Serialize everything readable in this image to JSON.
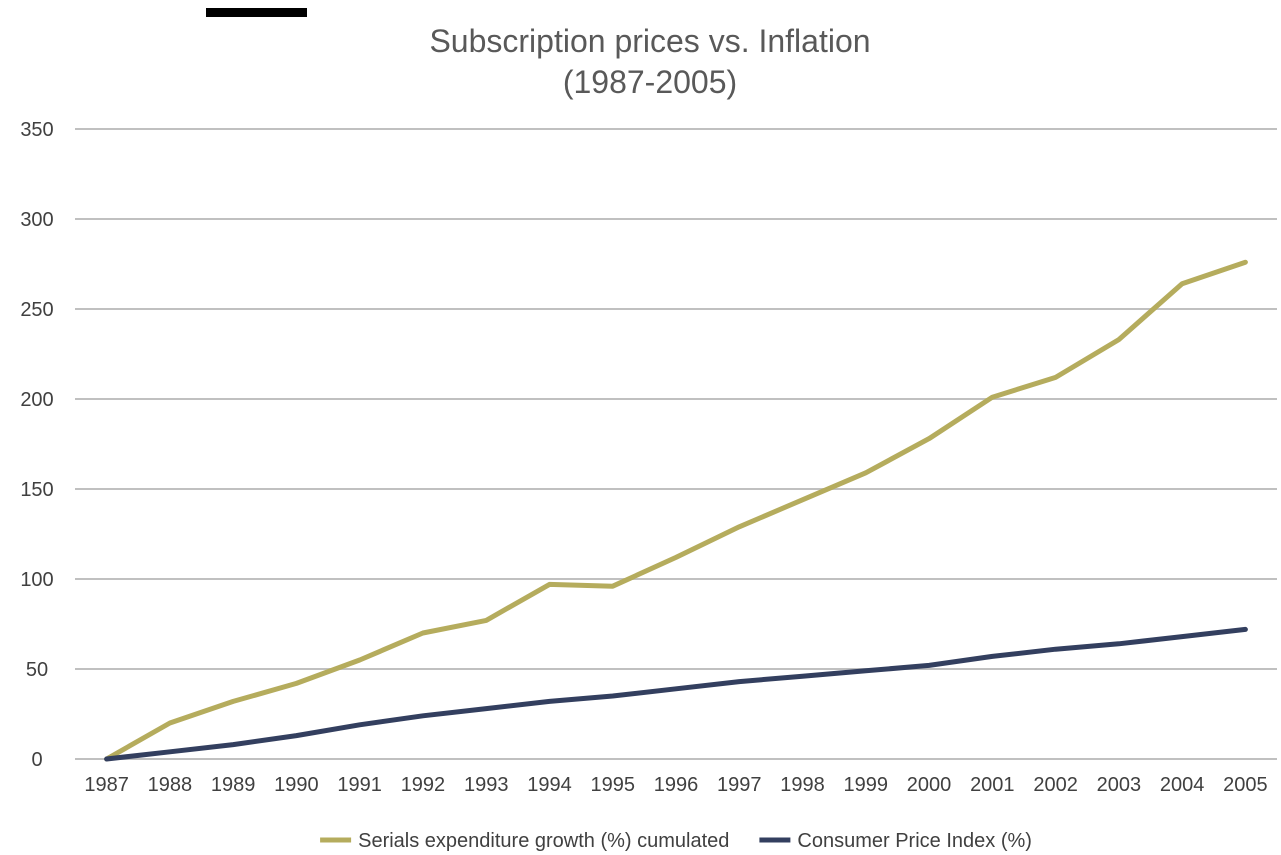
{
  "chart_data": {
    "type": "line",
    "title_lines": [
      "Subscription prices vs. Inflation",
      "(1987-2005)"
    ],
    "xlabel": "",
    "ylabel": "",
    "x": [
      "1987",
      "1988",
      "1989",
      "1990",
      "1991",
      "1992",
      "1993",
      "1994",
      "1995",
      "1996",
      "1997",
      "1998",
      "1999",
      "2000",
      "2001",
      "2002",
      "2003",
      "2004",
      "2005"
    ],
    "yticks": [
      "0",
      "50",
      "100",
      "150",
      "200",
      "250",
      "300",
      "350"
    ],
    "ylim": [
      0,
      350
    ],
    "grid": true,
    "legend_position": "bottom",
    "series": [
      {
        "name": "Serials expenditure growth (%) cumulated",
        "color": "#b5ac5d",
        "values": [
          0,
          20,
          32,
          42,
          55,
          70,
          77,
          97,
          96,
          112,
          129,
          144,
          159,
          178,
          201,
          212,
          233,
          264,
          276
        ]
      },
      {
        "name": "Consumer Price Index (%)",
        "color": "#333f5f",
        "values": [
          0,
          4,
          8,
          13,
          19,
          24,
          28,
          32,
          35,
          39,
          43,
          46,
          49,
          52,
          57,
          61,
          64,
          68,
          72
        ]
      }
    ]
  }
}
